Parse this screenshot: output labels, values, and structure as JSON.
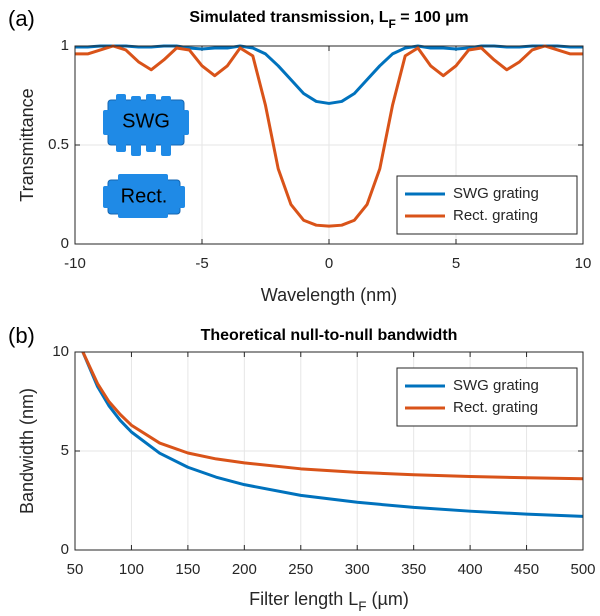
{
  "chart_data": [
    {
      "type": "line",
      "panel_label": "(a)",
      "title": [
        "Simulated transmission, L",
        "F",
        " = 100 µm"
      ],
      "xlabel": "Wavelength (nm)",
      "ylabel": "Transmittance",
      "annotations": [
        "SWG",
        "Rect."
      ],
      "x": [
        -10,
        -9.5,
        -9,
        -8.5,
        -8,
        -7.5,
        -7,
        -6.5,
        -6,
        -5.5,
        -5,
        -4.5,
        -4,
        -3.5,
        -3,
        -2.5,
        -2,
        -1.5,
        -1,
        -0.5,
        0,
        0.5,
        1,
        1.5,
        2,
        2.5,
        3,
        3.5,
        4,
        4.5,
        5,
        5.5,
        6,
        6.5,
        7,
        7.5,
        8,
        8.5,
        9,
        9.5,
        10
      ],
      "series": [
        {
          "name": "SWG grating",
          "color": "#0072bd",
          "values": [
            0.995,
            0.995,
            1.0,
            1.0,
            1.0,
            0.995,
            0.995,
            1.0,
            1.0,
            0.99,
            0.985,
            0.99,
            0.99,
            1.0,
            0.99,
            0.96,
            0.9,
            0.83,
            0.76,
            0.72,
            0.71,
            0.72,
            0.76,
            0.83,
            0.9,
            0.96,
            0.99,
            1.0,
            0.99,
            0.99,
            0.985,
            0.99,
            1.0,
            1.0,
            0.995,
            0.995,
            1.0,
            1.0,
            1.0,
            0.995,
            0.995
          ]
        },
        {
          "name": "Rect. grating",
          "color": "#d95319",
          "values": [
            0.96,
            0.96,
            0.98,
            1.0,
            0.98,
            0.92,
            0.88,
            0.93,
            0.99,
            0.98,
            0.9,
            0.85,
            0.9,
            0.99,
            0.95,
            0.7,
            0.38,
            0.2,
            0.12,
            0.095,
            0.09,
            0.095,
            0.12,
            0.2,
            0.38,
            0.7,
            0.95,
            0.99,
            0.9,
            0.85,
            0.9,
            0.98,
            0.99,
            0.93,
            0.88,
            0.92,
            0.98,
            1.0,
            0.98,
            0.96,
            0.96
          ]
        }
      ],
      "xlim": [
        -10,
        10
      ],
      "xticks": [
        -10,
        -5,
        0,
        5,
        10
      ],
      "ylim": [
        0,
        1
      ],
      "yticks": [
        0,
        0.5,
        1
      ],
      "grid": true,
      "legend": "lower right"
    },
    {
      "type": "line",
      "panel_label": "(b)",
      "title": [
        "Theoretical null-to-null bandwidth"
      ],
      "xlabel": [
        "Filter length L",
        "F",
        " (µm)"
      ],
      "ylabel": "Bandwidth (nm)",
      "x": [
        57,
        70,
        80,
        90,
        100,
        125,
        150,
        175,
        200,
        250,
        300,
        350,
        400,
        450,
        500
      ],
      "series": [
        {
          "name": "SWG grating",
          "color": "#0072bd",
          "values": [
            10.0,
            8.25,
            7.29,
            6.55,
            5.96,
            4.89,
            4.18,
            3.68,
            3.3,
            2.76,
            2.41,
            2.15,
            1.96,
            1.81,
            1.7
          ]
        },
        {
          "name": "Rect. grating",
          "color": "#d95319",
          "values": [
            10.0,
            8.4,
            7.5,
            6.85,
            6.3,
            5.4,
            4.9,
            4.6,
            4.4,
            4.1,
            3.92,
            3.8,
            3.71,
            3.65,
            3.6
          ]
        }
      ],
      "xlim": [
        50,
        500
      ],
      "xticks": [
        50,
        100,
        150,
        200,
        250,
        300,
        350,
        400,
        450,
        500
      ],
      "ylim": [
        0,
        10
      ],
      "yticks": [
        0,
        5,
        10
      ],
      "grid": true,
      "legend": "upper right"
    }
  ]
}
